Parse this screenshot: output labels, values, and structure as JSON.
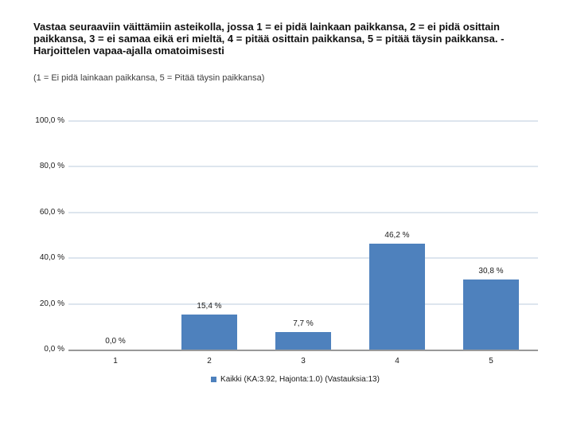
{
  "title": "Vastaa seuraaviin väittämiin asteikolla, jossa 1 = ei pidä lainkaan paikkansa, 2 = ei pidä osittain paikkansa, 3 = ei samaa eikä eri mieltä, 4 = pitää osittain paikkansa, 5 = pitää täysin paikkansa. - Harjoittelen vapaa-ajalla omatoimisesti",
  "subtitle": "(1 = Ei pidä lainkaan paikkansa, 5 = Pitää täysin paikkansa)",
  "legend": {
    "label": "Kaikki (KA:3.92, Hajonta:1.0) (Vastauksia:13)"
  },
  "colors": {
    "bar": "#4e81bd",
    "gridline": "#dde5ee",
    "axis": "#999999",
    "text": "#1a1a1a"
  },
  "chart_data": {
    "type": "bar",
    "title": "Vastaa seuraaviin väittämiin asteikolla, jossa 1 = ei pidä lainkaan paikkansa, 2 = ei pidä osittain paikkansa, 3 = ei samaa eikä eri mieltä, 4 = pitää osittain paikkansa, 5 = pitää täysin paikkansa. - Harjoittelen vapaa-ajalla omatoimisesti",
    "subtitle": "(1 = Ei pidä lainkaan paikkansa, 5 = Pitää täysin paikkansa)",
    "categories": [
      "1",
      "2",
      "3",
      "4",
      "5"
    ],
    "series": [
      {
        "name": "Kaikki (KA:3.92, Hajonta:1.0) (Vastauksia:13)",
        "values": [
          0.0,
          15.4,
          7.7,
          46.2,
          30.8
        ]
      }
    ],
    "value_labels": [
      "0,0 %",
      "15,4 %",
      "7,7 %",
      "46,2 %",
      "30,8 %"
    ],
    "xlabel": "",
    "ylabel": "",
    "ylim": [
      0,
      100
    ],
    "y_ticks": [
      0,
      20,
      40,
      60,
      80,
      100
    ],
    "y_tick_labels": [
      "0,0 %",
      "20,0 %",
      "40,0 %",
      "60,0 %",
      "80,0 %",
      "100,0 %"
    ],
    "grid": true,
    "legend_position": "bottom"
  }
}
